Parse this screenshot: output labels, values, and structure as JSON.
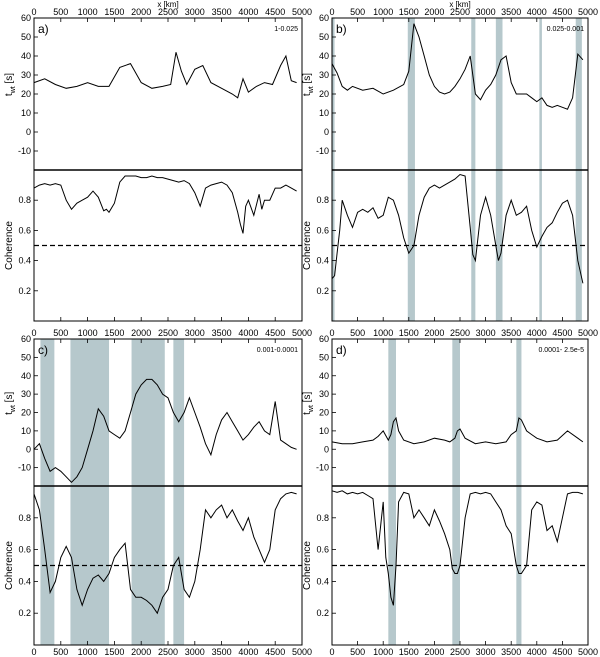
{
  "chart_data": [
    {
      "type": "line",
      "panel_label": "a)",
      "band_label": "1-0.025",
      "xlabel": "x [km]",
      "show_top_xlabel": true,
      "show_bottom_xlabel": false,
      "xlim": [
        0,
        5000
      ],
      "xticks": [
        0,
        500,
        1000,
        1500,
        2000,
        2500,
        3000,
        3500,
        4000,
        4500,
        5000
      ],
      "top": {
        "ylabel_main": "t",
        "ylabel_sub": "wt",
        "ylabel_unit": " [s]",
        "ylim": [
          -20,
          60
        ],
        "yticks": [
          -10,
          0,
          10,
          20,
          30,
          40,
          50,
          60
        ],
        "x": [
          0,
          200,
          400,
          600,
          800,
          1000,
          1200,
          1400,
          1600,
          1800,
          2000,
          2200,
          2400,
          2550,
          2650,
          2750,
          2850,
          3000,
          3150,
          3300,
          3500,
          3700,
          3800,
          3900,
          4000,
          4150,
          4300,
          4450,
          4600,
          4700,
          4800,
          4900
        ],
        "y": [
          26,
          28,
          25,
          23,
          24,
          26,
          24,
          24,
          34,
          36,
          26,
          23,
          24,
          25,
          42,
          32,
          25,
          33,
          35,
          26,
          23,
          20,
          18,
          28,
          21,
          24,
          26,
          25,
          35,
          40,
          27,
          26
        ]
      },
      "bottom": {
        "ylabel": "Coherence",
        "ylim": [
          0,
          1
        ],
        "yticks": [
          0.2,
          0.4,
          0.6,
          0.8
        ],
        "threshold": 0.5,
        "x": [
          0,
          100,
          200,
          300,
          400,
          500,
          600,
          700,
          800,
          900,
          1000,
          1100,
          1200,
          1300,
          1350,
          1400,
          1500,
          1600,
          1700,
          1800,
          1900,
          2000,
          2100,
          2200,
          2300,
          2400,
          2500,
          2600,
          2700,
          2800,
          2900,
          3000,
          3100,
          3200,
          3300,
          3400,
          3500,
          3600,
          3700,
          3800,
          3850,
          3900,
          3950,
          4000,
          4100,
          4200,
          4250,
          4300,
          4400,
          4500,
          4600,
          4700,
          4800,
          4900
        ],
        "y": [
          0.88,
          0.9,
          0.91,
          0.9,
          0.91,
          0.9,
          0.8,
          0.74,
          0.78,
          0.8,
          0.82,
          0.86,
          0.82,
          0.73,
          0.74,
          0.72,
          0.78,
          0.92,
          0.96,
          0.96,
          0.96,
          0.95,
          0.95,
          0.96,
          0.95,
          0.95,
          0.94,
          0.93,
          0.92,
          0.93,
          0.91,
          0.85,
          0.76,
          0.88,
          0.9,
          0.91,
          0.92,
          0.9,
          0.85,
          0.72,
          0.64,
          0.58,
          0.76,
          0.8,
          0.7,
          0.84,
          0.74,
          0.8,
          0.8,
          0.88,
          0.88,
          0.9,
          0.88,
          0.86
        ]
      },
      "bands": []
    },
    {
      "type": "line",
      "panel_label": "b)",
      "band_label": "0.025-0.001",
      "xlabel": "x [km]",
      "show_top_xlabel": true,
      "show_bottom_xlabel": false,
      "xlim": [
        0,
        5000
      ],
      "xticks": [
        0,
        500,
        1000,
        1500,
        2000,
        2500,
        3000,
        3500,
        4000,
        4500,
        5000
      ],
      "top": {
        "ylabel_main": "t",
        "ylabel_sub": "wt",
        "ylabel_unit": " [s]",
        "ylim": [
          -20,
          60
        ],
        "yticks": [
          -10,
          0,
          10,
          20,
          30,
          40,
          50,
          60
        ],
        "x": [
          0,
          100,
          200,
          300,
          400,
          600,
          800,
          1000,
          1200,
          1400,
          1500,
          1600,
          1700,
          1800,
          1900,
          2000,
          2100,
          2200,
          2300,
          2400,
          2500,
          2600,
          2700,
          2800,
          2900,
          3000,
          3100,
          3200,
          3300,
          3400,
          3500,
          3600,
          3700,
          3800,
          3900,
          4000,
          4100,
          4200,
          4300,
          4400,
          4500,
          4600,
          4700,
          4800,
          4900
        ],
        "y": [
          36,
          31,
          24,
          22,
          24,
          22,
          23,
          20,
          22,
          25,
          32,
          57,
          50,
          40,
          30,
          24,
          21,
          20,
          21,
          24,
          28,
          33,
          40,
          20,
          17,
          22,
          25,
          30,
          38,
          40,
          26,
          20,
          20,
          20,
          18,
          16,
          18,
          14,
          13,
          14,
          13,
          12,
          18,
          41,
          38
        ]
      },
      "bottom": {
        "ylabel": "Coherence",
        "ylim": [
          0,
          1
        ],
        "yticks": [
          0.2,
          0.4,
          0.6,
          0.8
        ],
        "threshold": 0.5,
        "x": [
          0,
          50,
          100,
          150,
          200,
          300,
          400,
          500,
          600,
          700,
          800,
          900,
          1000,
          1100,
          1200,
          1300,
          1400,
          1500,
          1600,
          1700,
          1800,
          1900,
          2000,
          2100,
          2200,
          2300,
          2400,
          2500,
          2600,
          2700,
          2750,
          2800,
          2900,
          3000,
          3100,
          3200,
          3250,
          3300,
          3400,
          3500,
          3600,
          3700,
          3800,
          3900,
          4000,
          4100,
          4200,
          4300,
          4400,
          4500,
          4600,
          4700,
          4800,
          4900
        ],
        "y": [
          0.28,
          0.3,
          0.45,
          0.6,
          0.8,
          0.7,
          0.62,
          0.72,
          0.74,
          0.72,
          0.75,
          0.68,
          0.7,
          0.82,
          0.8,
          0.7,
          0.55,
          0.45,
          0.5,
          0.7,
          0.82,
          0.88,
          0.9,
          0.88,
          0.9,
          0.92,
          0.94,
          0.97,
          0.96,
          0.62,
          0.44,
          0.4,
          0.7,
          0.82,
          0.7,
          0.5,
          0.4,
          0.45,
          0.7,
          0.8,
          0.7,
          0.72,
          0.76,
          0.6,
          0.49,
          0.56,
          0.62,
          0.65,
          0.72,
          0.78,
          0.8,
          0.7,
          0.4,
          0.25
        ]
      },
      "bands": [
        [
          0,
          50
        ],
        [
          1480,
          1620
        ],
        [
          2720,
          2800
        ],
        [
          3200,
          3330
        ],
        [
          4050,
          4100
        ],
        [
          4760,
          4880
        ]
      ]
    },
    {
      "type": "line",
      "panel_label": "c)",
      "band_label": "0.001-0.0001",
      "xlabel": "x [km]",
      "show_top_xlabel": false,
      "show_bottom_xlabel": true,
      "xlim": [
        0,
        5000
      ],
      "xticks": [
        0,
        500,
        1000,
        1500,
        2000,
        2500,
        3000,
        3500,
        4000,
        4500,
        5000
      ],
      "top": {
        "ylabel_main": "t",
        "ylabel_sub": "wt",
        "ylabel_unit": " [s]",
        "ylim": [
          -20,
          60
        ],
        "yticks": [
          -10,
          0,
          10,
          20,
          30,
          40,
          50,
          60
        ],
        "x": [
          0,
          100,
          200,
          300,
          400,
          500,
          600,
          700,
          800,
          900,
          1000,
          1100,
          1200,
          1300,
          1400,
          1500,
          1600,
          1700,
          1800,
          1900,
          2000,
          2100,
          2200,
          2300,
          2400,
          2500,
          2600,
          2700,
          2800,
          2900,
          3000,
          3100,
          3200,
          3300,
          3400,
          3500,
          3600,
          3700,
          3800,
          3900,
          4000,
          4100,
          4200,
          4300,
          4400,
          4500,
          4600,
          4700,
          4800,
          4900
        ],
        "y": [
          0,
          3,
          -5,
          -12,
          -10,
          -12,
          -15,
          -18,
          -15,
          -10,
          0,
          10,
          22,
          18,
          10,
          8,
          6,
          10,
          20,
          30,
          35,
          38,
          38,
          35,
          30,
          28,
          20,
          15,
          20,
          28,
          20,
          12,
          3,
          -3,
          8,
          16,
          20,
          15,
          10,
          5,
          8,
          12,
          15,
          10,
          8,
          26,
          5,
          3,
          1,
          0
        ]
      },
      "bottom": {
        "ylabel": "Coherence",
        "ylim": [
          0,
          1
        ],
        "yticks": [
          0.2,
          0.4,
          0.6,
          0.8
        ],
        "threshold": 0.5,
        "x": [
          0,
          100,
          200,
          300,
          400,
          500,
          600,
          700,
          800,
          900,
          1000,
          1100,
          1200,
          1300,
          1400,
          1500,
          1600,
          1700,
          1800,
          1900,
          2000,
          2100,
          2200,
          2300,
          2400,
          2500,
          2600,
          2700,
          2800,
          2900,
          3000,
          3100,
          3200,
          3300,
          3400,
          3500,
          3600,
          3700,
          3800,
          3900,
          4000,
          4100,
          4200,
          4300,
          4400,
          4500,
          4600,
          4700,
          4800,
          4900
        ],
        "y": [
          0.95,
          0.85,
          0.6,
          0.33,
          0.4,
          0.55,
          0.62,
          0.55,
          0.35,
          0.25,
          0.35,
          0.42,
          0.44,
          0.4,
          0.45,
          0.55,
          0.6,
          0.64,
          0.35,
          0.3,
          0.3,
          0.28,
          0.25,
          0.2,
          0.3,
          0.35,
          0.5,
          0.55,
          0.35,
          0.3,
          0.4,
          0.6,
          0.85,
          0.8,
          0.85,
          0.88,
          0.8,
          0.85,
          0.78,
          0.72,
          0.8,
          0.68,
          0.6,
          0.52,
          0.6,
          0.85,
          0.92,
          0.95,
          0.96,
          0.95
        ]
      },
      "bands": [
        [
          120,
          380
        ],
        [
          680,
          1400
        ],
        [
          1820,
          2440
        ],
        [
          2600,
          2800
        ]
      ]
    },
    {
      "type": "line",
      "panel_label": "d)",
      "band_label": "0.0001- 2.5e-5",
      "xlabel": "x [km]",
      "show_top_xlabel": false,
      "show_bottom_xlabel": true,
      "xlim": [
        0,
        5000
      ],
      "xticks": [
        0,
        500,
        1000,
        1500,
        2000,
        2500,
        3000,
        3500,
        4000,
        4500,
        5000
      ],
      "top": {
        "ylabel_main": "t",
        "ylabel_sub": "wt",
        "ylabel_unit": " [s]",
        "ylim": [
          -20,
          60
        ],
        "yticks": [
          -10,
          0,
          10,
          20,
          30,
          40,
          50,
          60
        ],
        "x": [
          0,
          200,
          400,
          600,
          800,
          900,
          1000,
          1100,
          1150,
          1200,
          1250,
          1300,
          1400,
          1600,
          1800,
          2000,
          2200,
          2300,
          2400,
          2450,
          2500,
          2600,
          2800,
          3000,
          3200,
          3400,
          3500,
          3600,
          3650,
          3700,
          3800,
          3900,
          4000,
          4200,
          4400,
          4600,
          4800,
          4900
        ],
        "y": [
          4,
          3,
          3,
          4,
          5,
          7,
          10,
          5,
          8,
          15,
          17,
          10,
          5,
          3,
          4,
          6,
          5,
          4,
          6,
          10,
          11,
          6,
          3,
          4,
          3,
          4,
          8,
          10,
          17,
          16,
          10,
          8,
          6,
          4,
          5,
          10,
          6,
          4
        ]
      },
      "bottom": {
        "ylabel": "Coherence",
        "ylim": [
          0,
          1
        ],
        "yticks": [
          0.2,
          0.4,
          0.6,
          0.8
        ],
        "threshold": 0.5,
        "x": [
          0,
          100,
          200,
          300,
          400,
          500,
          600,
          700,
          800,
          900,
          1000,
          1050,
          1100,
          1150,
          1200,
          1250,
          1300,
          1400,
          1500,
          1600,
          1700,
          1800,
          1900,
          2000,
          2100,
          2200,
          2300,
          2350,
          2400,
          2450,
          2500,
          2600,
          2700,
          2800,
          2900,
          3000,
          3100,
          3200,
          3300,
          3400,
          3500,
          3600,
          3650,
          3700,
          3800,
          3900,
          4000,
          4100,
          4200,
          4300,
          4400,
          4500,
          4600,
          4700,
          4800,
          4900
        ],
        "y": [
          0.97,
          0.96,
          0.97,
          0.95,
          0.96,
          0.95,
          0.96,
          0.94,
          0.92,
          0.6,
          0.9,
          0.55,
          0.45,
          0.3,
          0.25,
          0.5,
          0.9,
          0.96,
          0.95,
          0.8,
          0.85,
          0.8,
          0.75,
          0.85,
          0.78,
          0.7,
          0.6,
          0.48,
          0.45,
          0.45,
          0.5,
          0.8,
          0.95,
          0.96,
          0.95,
          0.96,
          0.95,
          0.9,
          0.85,
          0.75,
          0.7,
          0.5,
          0.45,
          0.45,
          0.5,
          0.85,
          0.9,
          0.88,
          0.72,
          0.75,
          0.65,
          0.8,
          0.95,
          0.96,
          0.96,
          0.95
        ]
      },
      "bands": [
        [
          1100,
          1250
        ],
        [
          2350,
          2500
        ],
        [
          3600,
          3700
        ]
      ]
    }
  ]
}
